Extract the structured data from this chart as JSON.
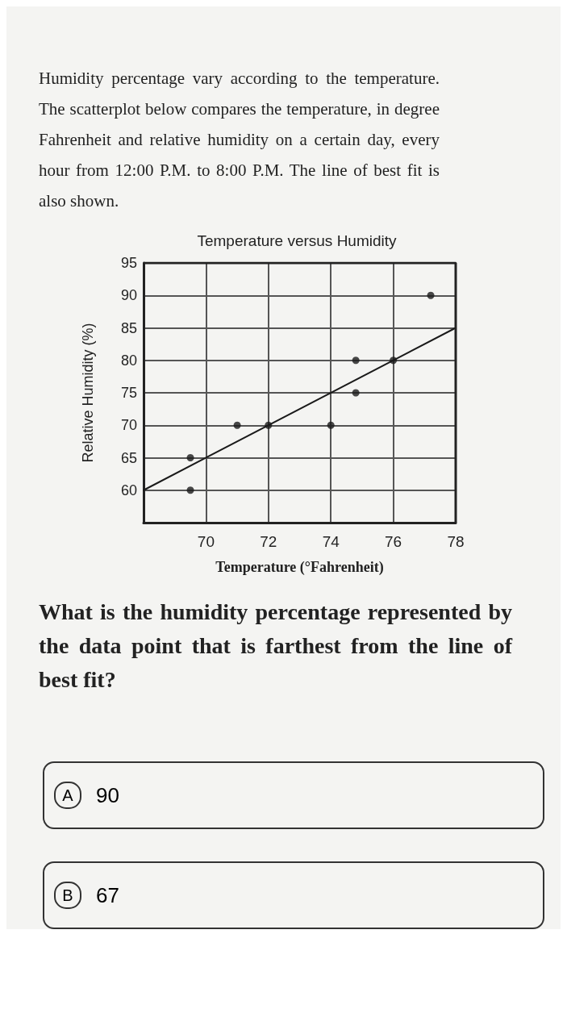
{
  "chart_data": {
    "type": "scatter",
    "title": "Temperature versus Humidity",
    "xlabel": "Temperature (°Fahrenheit)",
    "ylabel": "Relative Humidity (%)",
    "annotations": [
      "Humidity percentage vary according to the temperature. The scatterplot below compares the temperature, in degree Fahrenheit and relative humidity on a certain day, every hour from 12:00 P.M. to 8:00 P.M. The line of best fit is also shown.",
      "What is the humidity percentage represented by the data point that is farthest from the line of best fit?",
      "A",
      "90",
      "B",
      "67"
    ],
    "series": [
      {
        "color": "#1a1a1a",
        "marker": "circle",
        "x": [
          69.5,
          69.5,
          71,
          72,
          74,
          74.8,
          74.8,
          76,
          77.2
        ],
        "values": [
          60,
          65,
          70,
          70,
          70,
          75,
          80,
          80,
          90
        ]
      },
      {
        "type": "line",
        "color": "#1a1a1a",
        "marker": "none",
        "x": [
          68,
          78
        ],
        "values": [
          60,
          85
        ]
      }
    ],
    "xlim": [
      68,
      78
    ],
    "xticks": [
      70,
      72,
      74,
      76,
      78
    ],
    "ylim": [
      55,
      95
    ],
    "yticks": [
      60,
      65,
      70,
      75,
      80,
      85,
      90,
      95
    ],
    "grid": true,
    "line_style": "solid"
  }
}
